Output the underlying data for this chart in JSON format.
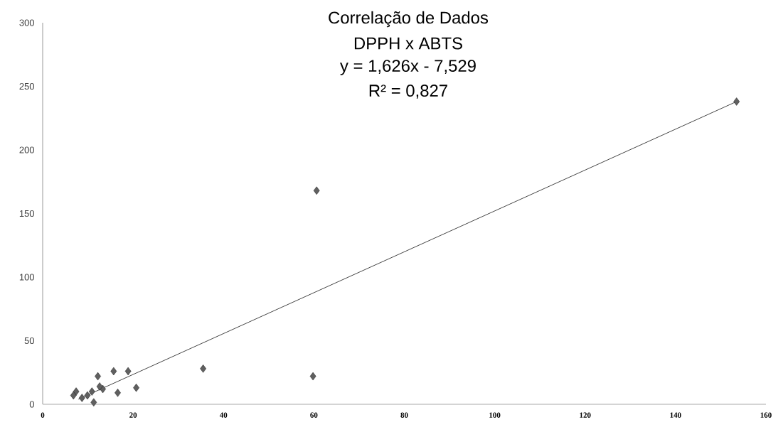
{
  "chart_data": {
    "type": "scatter",
    "title": "Correlação de Dados",
    "subtitle": "DPPH x ABTS",
    "annotations": [
      "y = 1,626x - 7,529",
      "R² = 0,827"
    ],
    "xlim": [
      0,
      160
    ],
    "ylim": [
      0,
      300
    ],
    "xticks": [
      0,
      20,
      40,
      60,
      80,
      100,
      120,
      140,
      160
    ],
    "yticks": [
      0,
      50,
      100,
      150,
      200,
      250,
      300
    ],
    "series": [
      {
        "marker": "diamond",
        "color": "#606060",
        "x": [
          153.5,
          60.6,
          59.8,
          35.5,
          15.7,
          18.9,
          12.2,
          20.7,
          16.6,
          13.3,
          12.6,
          11.3,
          10.9,
          9.9,
          8.7,
          7.4,
          6.8
        ],
        "values": [
          238,
          168,
          22,
          28,
          26,
          26,
          22,
          13,
          9,
          12,
          14,
          1.5,
          10,
          7,
          5,
          10,
          7
        ]
      },
      {
        "type": "line",
        "color": "#303030",
        "x": [
          7.9,
          153.5
        ],
        "values": [
          4,
          238
        ]
      }
    ]
  }
}
